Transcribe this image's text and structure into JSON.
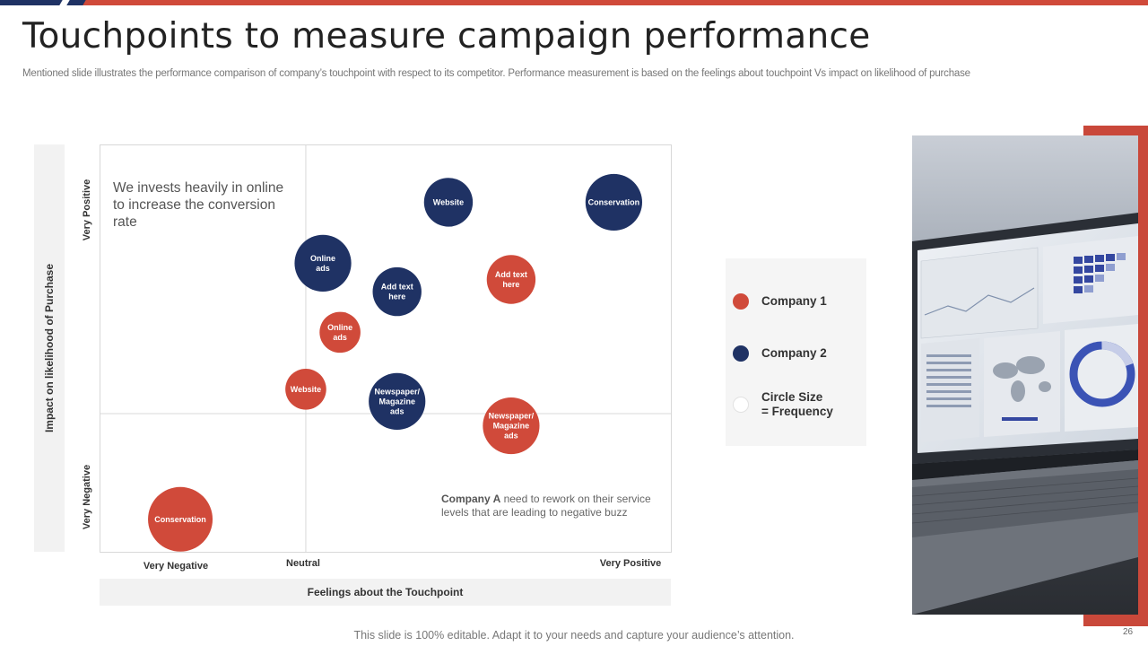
{
  "slide": {
    "title": "Touchpoints to measure campaign performance",
    "subtitle": "Mentioned slide illustrates the performance comparison of company’s touchpoint with respect to its competitor. Performance measurement is based on the feelings about touchpoint Vs impact on likelihood of purchase",
    "footer": "This slide is 100% editable. Adapt it to your needs and capture your audience’s attention.",
    "page_number": "26"
  },
  "annotations": {
    "top_left": "We invests heavily in online to increase the conversion rate",
    "bottom_right_bold": "Company A",
    "bottom_right_rest": " need to rework on their service levels that are leading to negative buzz"
  },
  "legend": {
    "items": [
      {
        "label": "Company 1",
        "color": "#d04a3a"
      },
      {
        "label": "Company 2",
        "color": "#1f3264"
      },
      {
        "label": "Circle Size\n= Frequency",
        "color": "#ffffff"
      }
    ]
  },
  "colors": {
    "company1": "#d04a3a",
    "company2": "#1f3264",
    "accent_bar": "#d04a3a"
  },
  "chart_data": {
    "type": "scatter",
    "xlabel": "Feelings about the Touchpoint",
    "ylabel": "Impact on likelihood of Purchase",
    "x_ticks": [
      "Very Negative",
      "Neutral",
      "Very Positive"
    ],
    "y_ticks": [
      "Very Positive",
      "Very Negative"
    ],
    "xlim": [
      0,
      10
    ],
    "ylim": [
      0,
      10
    ],
    "grid": "quadrant lines at x=3.6 and y=3.4",
    "legend_position": "right",
    "series": [
      {
        "name": "Company 1",
        "color": "#d04a3a",
        "points": [
          {
            "label": "Add text here",
            "x": 7.2,
            "y": 6.7,
            "size": 3
          },
          {
            "label": "Online ads",
            "x": 4.2,
            "y": 5.4,
            "size": 2
          },
          {
            "label": "Website",
            "x": 3.6,
            "y": 4.0,
            "size": 2
          },
          {
            "label": "Newspaper/ Magazine ads",
            "x": 7.2,
            "y": 3.1,
            "size": 4
          },
          {
            "label": "Conservation",
            "x": 1.4,
            "y": 0.8,
            "size": 5
          }
        ]
      },
      {
        "name": "Company 2",
        "color": "#1f3264",
        "points": [
          {
            "label": "Website",
            "x": 6.1,
            "y": 8.6,
            "size": 3
          },
          {
            "label": "Conservation",
            "x": 9.0,
            "y": 8.6,
            "size": 4
          },
          {
            "label": "Online ads",
            "x": 3.9,
            "y": 7.1,
            "size": 4
          },
          {
            "label": "Add text here",
            "x": 5.2,
            "y": 6.4,
            "size": 3
          },
          {
            "label": "Newspaper/ Magazine ads",
            "x": 5.2,
            "y": 3.7,
            "size": 4
          }
        ]
      }
    ]
  }
}
